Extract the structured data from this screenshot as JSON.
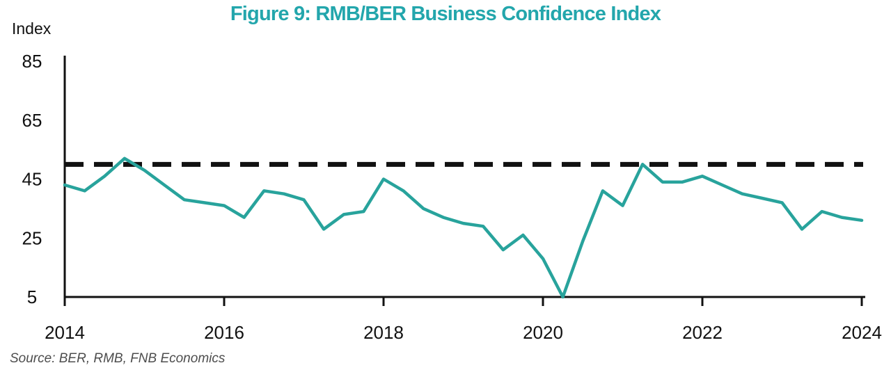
{
  "colors": {
    "title": "#23a6ac",
    "line": "#28a39c",
    "axis": "#111111",
    "source_text": "#4d4d4d"
  },
  "footer": {
    "source": "Source: BER, RMB, FNB Economics"
  },
  "chart_data": {
    "type": "line",
    "title": "Figure 9: RMB/BER Business Confidence Index",
    "ylabel": "Index",
    "xlabel": "",
    "frequency": "quarterly",
    "ylim": [
      5,
      85
    ],
    "y_ticks": [
      85,
      65,
      45,
      25,
      5
    ],
    "x_ticks": [
      {
        "label": "2014",
        "quarter_index": 0
      },
      {
        "label": "2016",
        "quarter_index": 8
      },
      {
        "label": "2018",
        "quarter_index": 16
      },
      {
        "label": "2020",
        "quarter_index": 24
      },
      {
        "label": "2022",
        "quarter_index": 32
      },
      {
        "label": "2024",
        "quarter_index": 40
      }
    ],
    "x": [
      "2014Q1",
      "2014Q2",
      "2014Q3",
      "2014Q4",
      "2015Q1",
      "2015Q2",
      "2015Q3",
      "2015Q4",
      "2016Q1",
      "2016Q2",
      "2016Q3",
      "2016Q4",
      "2017Q1",
      "2017Q2",
      "2017Q3",
      "2017Q4",
      "2018Q1",
      "2018Q2",
      "2018Q3",
      "2018Q4",
      "2019Q1",
      "2019Q2",
      "2019Q3",
      "2019Q4",
      "2020Q1",
      "2020Q2",
      "2020Q3",
      "2020Q4",
      "2021Q1",
      "2021Q2",
      "2021Q3",
      "2021Q4",
      "2022Q1",
      "2022Q2",
      "2022Q3",
      "2022Q4",
      "2023Q1",
      "2023Q2",
      "2023Q3",
      "2023Q4",
      "2024Q1"
    ],
    "values": [
      43,
      41,
      46,
      52,
      48,
      43,
      38,
      37,
      36,
      32,
      41,
      40,
      38,
      28,
      33,
      34,
      45,
      41,
      35,
      32,
      30,
      29,
      21,
      26,
      18,
      5,
      24,
      41,
      36,
      50,
      44,
      44,
      46,
      43,
      40,
      38.5,
      37,
      28,
      34,
      32,
      31
    ],
    "reference_line": {
      "value": 50,
      "style": "dashed",
      "color": "#111111"
    },
    "line_color": "#28a39c",
    "grid": false,
    "legend": "none"
  }
}
